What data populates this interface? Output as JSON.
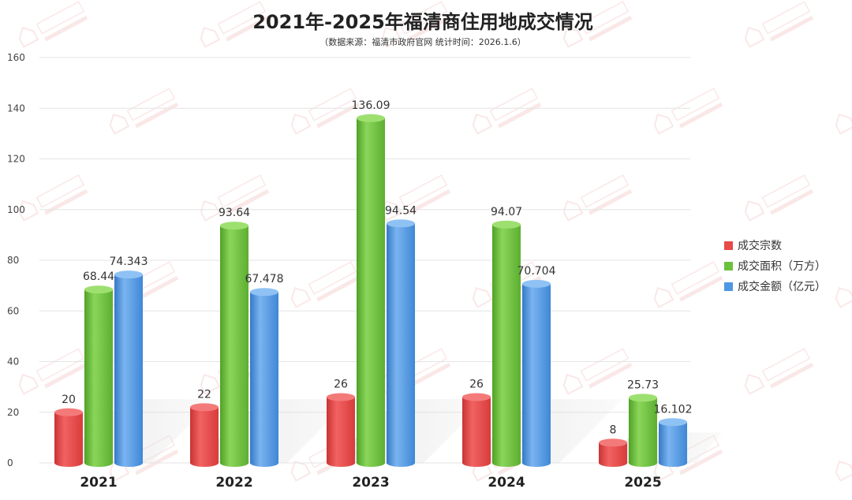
{
  "chart_data": {
    "type": "bar",
    "title": "2021年-2025年福清商住用地成交情况",
    "subtitle": "（数据来源：福清市政府官网 统计时间：2026.1.6）",
    "xlabel": "",
    "ylabel": "",
    "ylim": [
      0,
      160
    ],
    "yticks": [
      0,
      20,
      40,
      60,
      80,
      100,
      120,
      140,
      160
    ],
    "categories": [
      "2021",
      "2022",
      "2023",
      "2024",
      "2025"
    ],
    "series": [
      {
        "name": "成交宗数",
        "color": "#e84a4a",
        "values": [
          20,
          22,
          26,
          26,
          8
        ],
        "labels": [
          "20",
          "22",
          "26",
          "26",
          "8"
        ]
      },
      {
        "name": "成交面积（万方）",
        "color": "#6cc13c",
        "values": [
          68.44,
          93.64,
          136.09,
          94.07,
          25.73
        ],
        "labels": [
          "68.44",
          "93.64",
          "136.09",
          "94.07",
          "25.73"
        ]
      },
      {
        "name": "成交金额（亿元）",
        "color": "#4e97e4",
        "values": [
          74.343,
          67.478,
          94.54,
          70.704,
          16.102
        ],
        "labels": [
          "74.343",
          "67.478",
          "94.54",
          "70.704",
          "16.102"
        ]
      }
    ],
    "grid": true,
    "legend_position": "right"
  }
}
